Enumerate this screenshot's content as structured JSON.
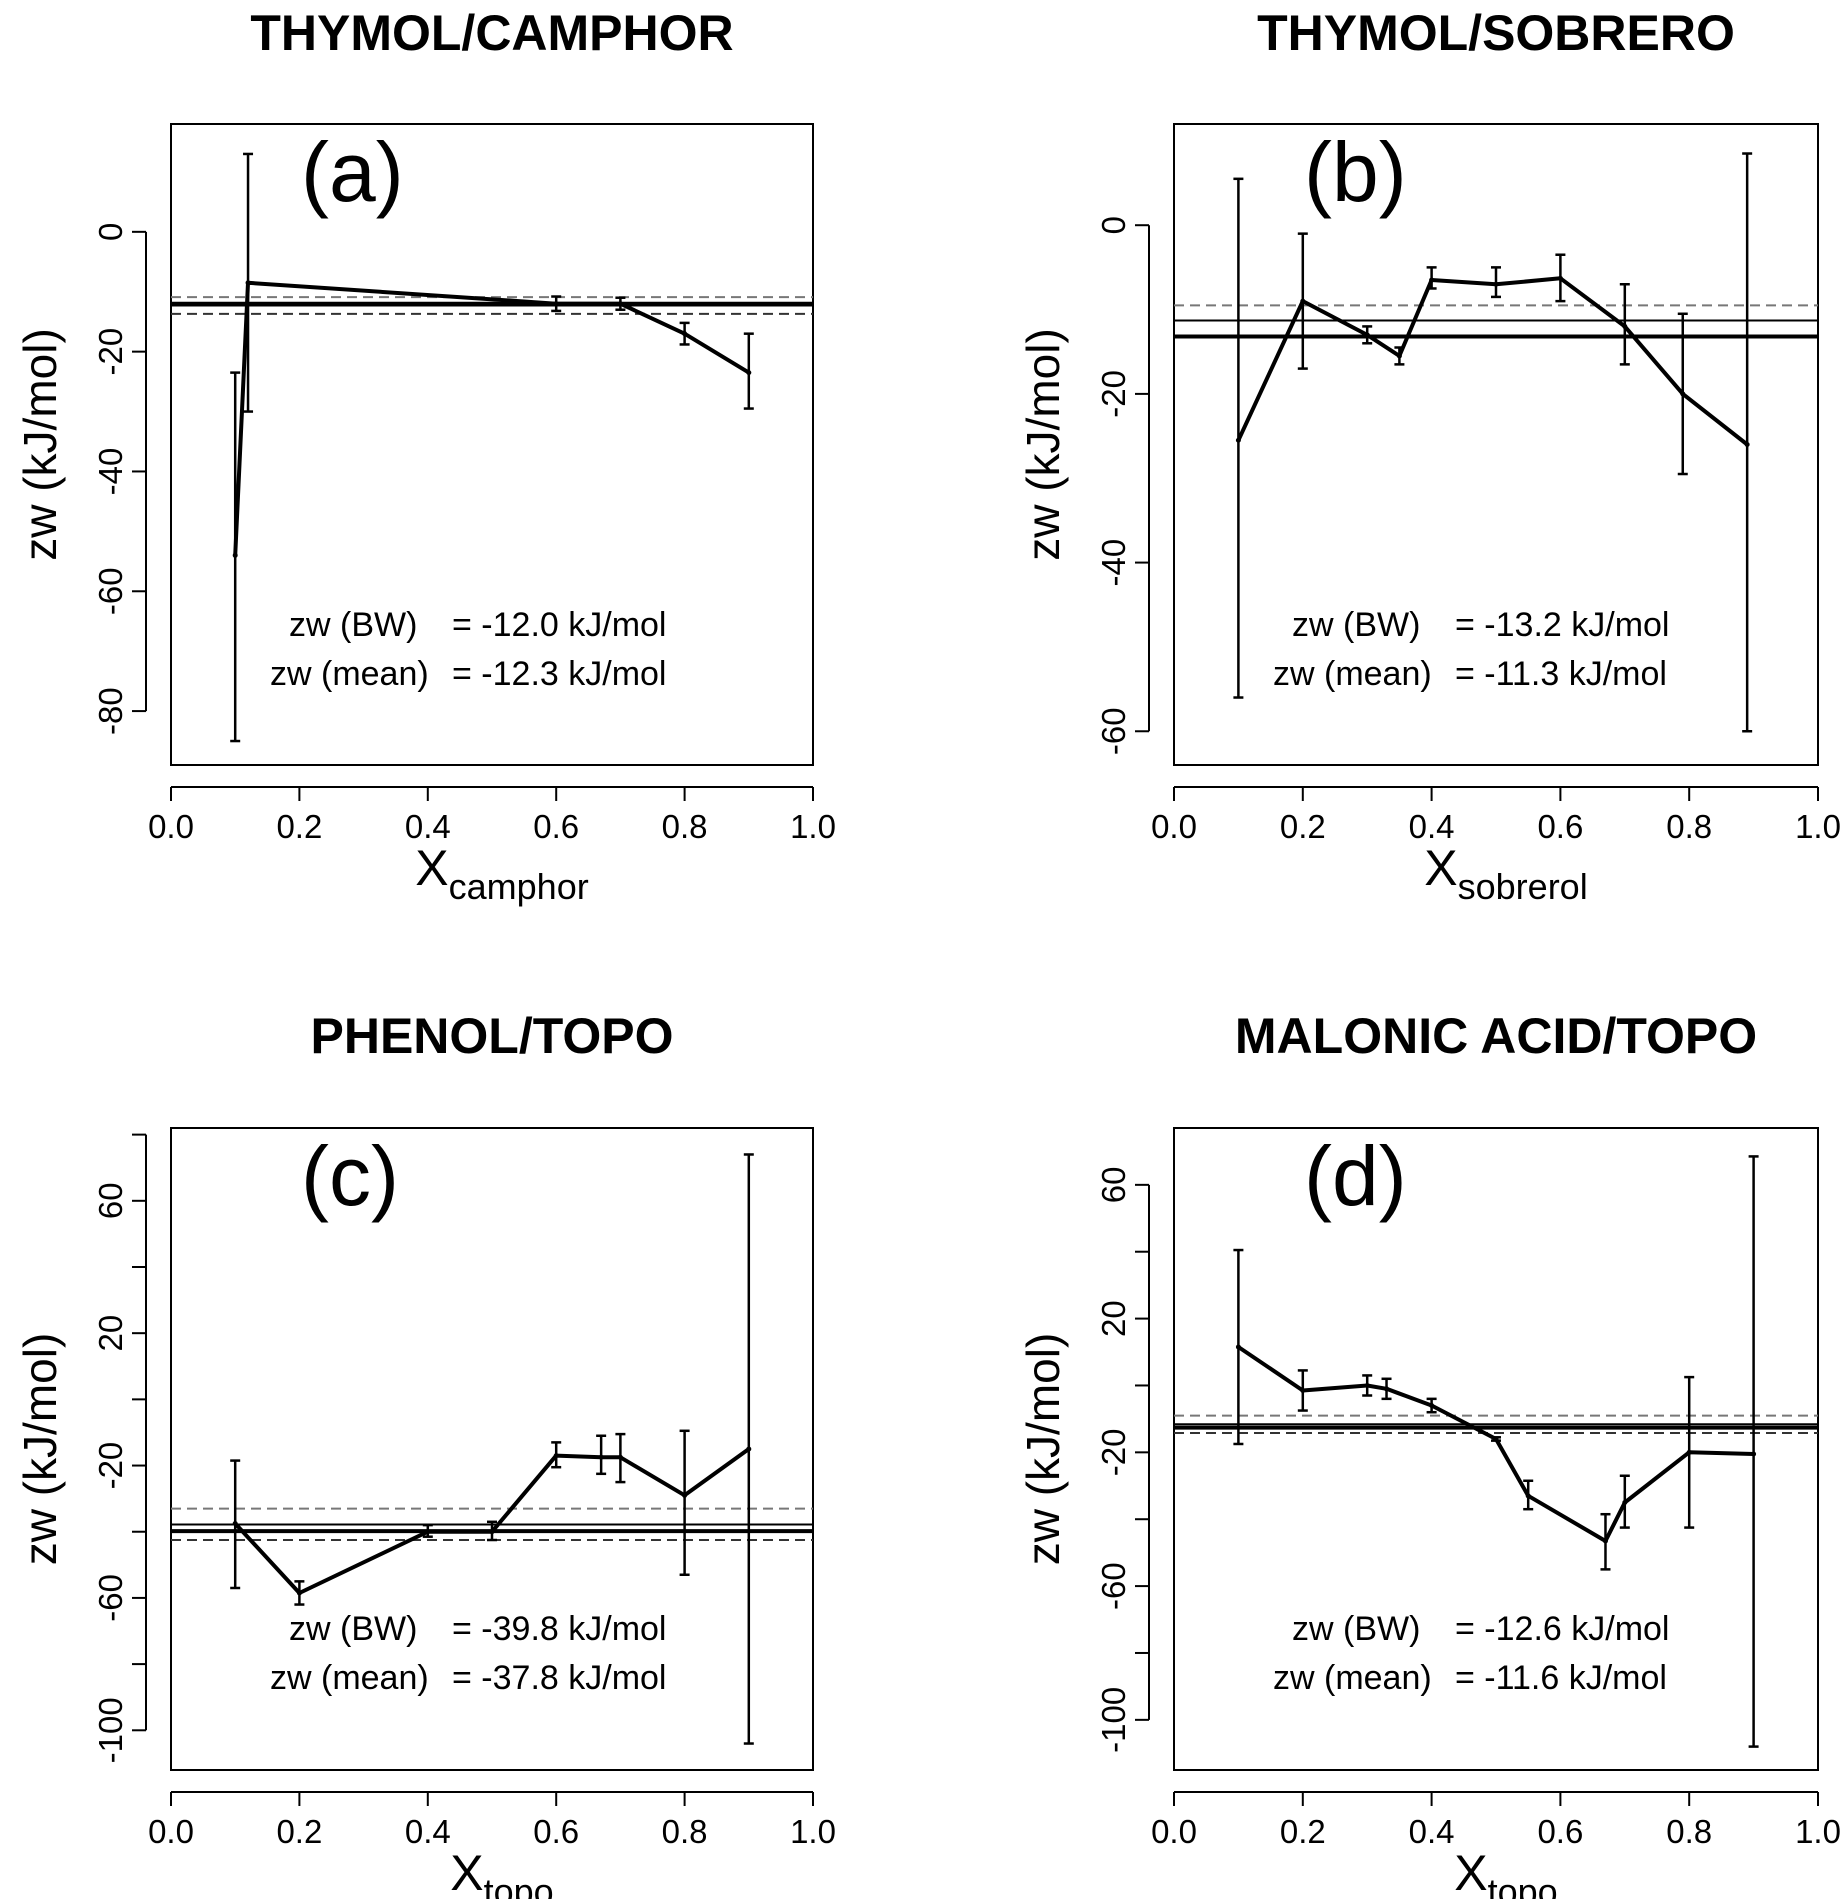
{
  "chart_data": [
    {
      "type": "line",
      "panel": "a",
      "title": "THYMOL/CAMPHOR",
      "panel_label": "(a)",
      "ylabel": "zw (kJ/mol)",
      "xlabel_main": "X",
      "xlabel_sub": "camphor",
      "xlim": [
        0,
        1
      ],
      "ylim": [
        -89,
        18
      ],
      "xticks": [
        0,
        0.2,
        0.4,
        0.6,
        0.8,
        1
      ],
      "xtick_labels": [
        "0.0",
        "0.2",
        "0.4",
        "0.6",
        "0.8",
        "1.0"
      ],
      "yticks": [
        0,
        -20,
        -40,
        -60,
        -80
      ],
      "ytick_labels": [
        "0",
        "-20",
        "-40",
        "-60",
        "-80"
      ],
      "minor_yticks": [],
      "series": [
        {
          "name": "zw",
          "x": [
            0.1,
            0.12,
            0.6,
            0.7,
            0.8,
            0.9
          ],
          "y": [
            -54,
            -8.5,
            -12,
            -12,
            -17,
            -23.5
          ],
          "err_low": [
            -85,
            -30,
            -13.2,
            -13,
            -18.8,
            -29.5
          ],
          "err_high": [
            -23.5,
            13,
            -10.8,
            -11,
            -15.2,
            -17
          ]
        }
      ],
      "bw_value": -12.0,
      "mean_value": -12.3,
      "mean_ci": [
        -13.7,
        -10.9
      ],
      "annotation_bw_label": "zw (BW)",
      "annotation_bw_text": "= -12.0 kJ/mol",
      "annotation_mean_label": "zw (mean)",
      "annotation_mean_text": "= -12.3 kJ/mol"
    },
    {
      "type": "line",
      "panel": "b",
      "title": "THYMOL/SOBRERO",
      "panel_label": "(b)",
      "ylabel": "zw (kJ/mol)",
      "xlabel_main": "X",
      "xlabel_sub": "sobrerol",
      "xlim": [
        0,
        1
      ],
      "ylim": [
        -64,
        12
      ],
      "xticks": [
        0,
        0.2,
        0.4,
        0.6,
        0.8,
        1
      ],
      "xtick_labels": [
        "0.0",
        "0.2",
        "0.4",
        "0.6",
        "0.8",
        "1.0"
      ],
      "yticks": [
        0,
        -20,
        -40,
        -60
      ],
      "ytick_labels": [
        "0",
        "-20",
        "-40",
        "-60"
      ],
      "minor_yticks": [],
      "series": [
        {
          "name": "zw",
          "x": [
            0.1,
            0.2,
            0.3,
            0.35,
            0.4,
            0.5,
            0.6,
            0.7,
            0.79,
            0.89
          ],
          "y": [
            -25.5,
            -9,
            -13,
            -15.5,
            -6.5,
            -7,
            -6.3,
            -12,
            -20,
            -26
          ],
          "err_low": [
            -56,
            -17,
            -14,
            -16.5,
            -7.5,
            -8.5,
            -9,
            -16.5,
            -29.5,
            -60
          ],
          "err_high": [
            5.5,
            -1,
            -12,
            -14.5,
            -5,
            -5,
            -3.5,
            -7,
            -10.5,
            8.5
          ]
        }
      ],
      "bw_value": -13.2,
      "mean_value": -11.3,
      "mean_ci": [
        -13.1,
        -9.5
      ],
      "annotation_bw_label": "zw (BW)",
      "annotation_bw_text": "= -13.2 kJ/mol",
      "annotation_mean_label": "zw (mean)",
      "annotation_mean_text": "= -11.3 kJ/mol"
    },
    {
      "type": "line",
      "panel": "c",
      "title": "PHENOL/TOPO",
      "panel_label": "(c)",
      "ylabel": "zw (kJ/mol)",
      "xlabel_main": "X",
      "xlabel_sub": "topo",
      "xlim": [
        0,
        1
      ],
      "ylim": [
        -112,
        82
      ],
      "xticks": [
        0,
        0.2,
        0.4,
        0.6,
        0.8,
        1
      ],
      "xtick_labels": [
        "0.0",
        "0.2",
        "0.4",
        "0.6",
        "0.8",
        "1.0"
      ],
      "yticks": [
        60,
        20,
        -20,
        -60,
        -100
      ],
      "ytick_labels": [
        "60",
        "20",
        "-20",
        "-60",
        "-100"
      ],
      "minor_yticks": [
        80,
        40,
        0,
        -40,
        -80
      ],
      "series": [
        {
          "name": "zw",
          "x": [
            0.1,
            0.2,
            0.4,
            0.5,
            0.6,
            0.67,
            0.7,
            0.8,
            0.9
          ],
          "y": [
            -37.5,
            -58.5,
            -40,
            -40,
            -17,
            -17.5,
            -17.5,
            -29,
            -15
          ],
          "err_low": [
            -57,
            -62,
            -41.5,
            -42.5,
            -20.5,
            -22.5,
            -25,
            -53,
            -104
          ],
          "err_high": [
            -18.5,
            -55,
            -38,
            -37,
            -13,
            -11,
            -10.5,
            -9.5,
            74
          ]
        }
      ],
      "bw_value": -39.8,
      "mean_value": -37.8,
      "mean_ci": [
        -42.5,
        -33
      ],
      "annotation_bw_label": "zw (BW)",
      "annotation_bw_text": "= -39.8 kJ/mol",
      "annotation_mean_label": "zw (mean)",
      "annotation_mean_text": "= -37.8 kJ/mol"
    },
    {
      "type": "line",
      "panel": "d",
      "title": "MALONIC ACID/TOPO",
      "panel_label": "(d)",
      "ylabel": "zw (kJ/mol)",
      "xlabel_main": "X",
      "xlabel_sub": "topo",
      "xlim": [
        0,
        1
      ],
      "ylim": [
        -115,
        77
      ],
      "xticks": [
        0,
        0.2,
        0.4,
        0.6,
        0.8,
        1
      ],
      "xtick_labels": [
        "0.0",
        "0.2",
        "0.4",
        "0.6",
        "0.8",
        "1.0"
      ],
      "yticks": [
        60,
        20,
        -20,
        -60,
        -100
      ],
      "ytick_labels": [
        "60",
        "20",
        "-20",
        "-60",
        "-100"
      ],
      "minor_yticks": [
        40,
        0,
        -40,
        -80
      ],
      "series": [
        {
          "name": "zw",
          "x": [
            0.1,
            0.2,
            0.3,
            0.33,
            0.4,
            0.5,
            0.55,
            0.67,
            0.7,
            0.8,
            0.9
          ],
          "y": [
            11.5,
            -1.5,
            0,
            -1,
            -6,
            -16,
            -33,
            -46.5,
            -35,
            -20,
            -20.5
          ],
          "err_low": [
            -17.5,
            -7.5,
            -3,
            -4,
            -8,
            -16.5,
            -37,
            -55,
            -42.5,
            -42.5,
            -108
          ],
          "err_high": [
            40.5,
            4.5,
            3,
            2,
            -4,
            -15.5,
            -28.5,
            -38.5,
            -27,
            2.5,
            68.5
          ]
        }
      ],
      "bw_value": -12.6,
      "mean_value": -11.6,
      "mean_ci": [
        -14.2,
        -9
      ],
      "annotation_bw_label": "zw (BW)",
      "annotation_bw_text": "= -12.6 kJ/mol",
      "annotation_mean_label": "zw (mean)",
      "annotation_mean_text": "= -11.6 kJ/mol"
    }
  ]
}
